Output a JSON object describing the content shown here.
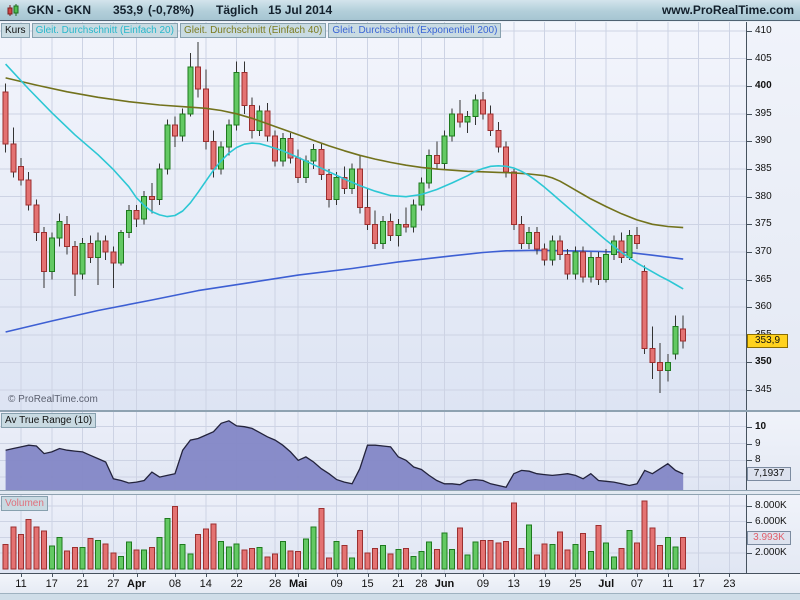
{
  "header": {
    "symbol_title": "GKN - GKN",
    "last_price": "353,9",
    "change": "(-0,78%)",
    "timeframe": "Täglich",
    "date": "15 Jul 2014",
    "website": "www.ProRealTime.com"
  },
  "legend": {
    "kurs": "Kurs",
    "ma20": "Gleit. Durchschnitt (Einfach 20)",
    "ma40": "Gleit. Durchschnitt (Einfach 40)",
    "ma200": "Gleit. Durchschnitt (Exponentiell 200)"
  },
  "watermark": "© ProRealTime.com",
  "panels": {
    "atr": {
      "label": "Av True Range (10)",
      "value_label": "7,1937"
    },
    "volume": {
      "label": "Volumen",
      "value_label": "3.993K"
    }
  },
  "colors": {
    "up": "#63c963",
    "up_border": "#1e7a1e",
    "down": "#e47272",
    "down_border": "#9c2f2f",
    "wick": "#333333",
    "ma20": "#2cc7d4",
    "ma40": "#72721c",
    "ema200": "#3d5fd3",
    "atr_fill": "#8387c6",
    "atr_line": "#23233c",
    "grid": "#cdd3e4",
    "axis_line": "#46525e",
    "price_flag_bg": "#ffd21e"
  },
  "chart_data": {
    "type": "candlestick",
    "title": "GKN - GKN Täglich",
    "price_axis": {
      "min": 345,
      "max": 410,
      "step": 5,
      "bold_ticks": [
        400,
        350
      ],
      "last_price": 353.9
    },
    "atr_axis": {
      "ticks": [
        {
          "v": 10,
          "b": 1
        },
        {
          "v": 9,
          "b": 0
        },
        {
          "v": 8,
          "b": 0
        }
      ],
      "grid": [
        10,
        9,
        8,
        7
      ],
      "last_value": 7.1937
    },
    "volume_axis": {
      "ticks": [
        {
          "v": 8,
          "label": "8.000K"
        },
        {
          "v": 6,
          "label": "6.000K"
        },
        {
          "v": 4,
          "label": "4.000K"
        },
        {
          "v": 2,
          "label": "2.000K"
        }
      ],
      "last_value": 3.993
    },
    "date_ticks": [
      {
        "i": 2,
        "label": "11",
        "b": 0
      },
      {
        "i": 6,
        "label": "17",
        "b": 0
      },
      {
        "i": 10,
        "label": "21",
        "b": 0
      },
      {
        "i": 14,
        "label": "27",
        "b": 0
      },
      {
        "i": 17,
        "label": "Apr",
        "b": 1
      },
      {
        "i": 22,
        "label": "08",
        "b": 0
      },
      {
        "i": 26,
        "label": "14",
        "b": 0
      },
      {
        "i": 30,
        "label": "22",
        "b": 0
      },
      {
        "i": 35,
        "label": "28",
        "b": 0
      },
      {
        "i": 38,
        "label": "Mai",
        "b": 1
      },
      {
        "i": 43,
        "label": "09",
        "b": 0
      },
      {
        "i": 47,
        "label": "15",
        "b": 0
      },
      {
        "i": 51,
        "label": "21",
        "b": 0
      },
      {
        "i": 54,
        "label": "28",
        "b": 0
      },
      {
        "i": 57,
        "label": "Jun",
        "b": 1
      },
      {
        "i": 62,
        "label": "09",
        "b": 0
      },
      {
        "i": 66,
        "label": "13",
        "b": 0
      },
      {
        "i": 70,
        "label": "19",
        "b": 0
      },
      {
        "i": 74,
        "label": "25",
        "b": 0
      },
      {
        "i": 78,
        "label": "Jul",
        "b": 1
      },
      {
        "i": 82,
        "label": "07",
        "b": 0
      },
      {
        "i": 86,
        "label": "11",
        "b": 0
      },
      {
        "i": 90,
        "label": "17",
        "b": 0
      },
      {
        "i": 94,
        "label": "23",
        "b": 0
      }
    ],
    "candles": [
      [
        399,
        400.5,
        388,
        389.5
      ],
      [
        389.5,
        392.5,
        383.5,
        384.5
      ],
      [
        385.5,
        387,
        382,
        383
      ],
      [
        383,
        384.5,
        377.5,
        378.5
      ],
      [
        378.5,
        379.5,
        372,
        373.5
      ],
      [
        373.5,
        374.5,
        363.5,
        366.5
      ],
      [
        366.5,
        373.5,
        365,
        372.5
      ],
      [
        372.5,
        377,
        371,
        375.5
      ],
      [
        375,
        376.5,
        369.5,
        371
      ],
      [
        371,
        372,
        362,
        366
      ],
      [
        366,
        372.5,
        365,
        371.5
      ],
      [
        371.5,
        373,
        368,
        369
      ],
      [
        369,
        373.5,
        364,
        372
      ],
      [
        372,
        373,
        368.5,
        370
      ],
      [
        370,
        371,
        363.5,
        368
      ],
      [
        368,
        374,
        367.5,
        373.5
      ],
      [
        373.5,
        378.5,
        372.5,
        377.5
      ],
      [
        377.5,
        378.5,
        374.5,
        376
      ],
      [
        376,
        381,
        375,
        380
      ],
      [
        380,
        382.5,
        377,
        379.5
      ],
      [
        379.5,
        386,
        378.5,
        385
      ],
      [
        385,
        394,
        384,
        393
      ],
      [
        393,
        394.5,
        389,
        391
      ],
      [
        391,
        396,
        390,
        395
      ],
      [
        395,
        406,
        394.5,
        403.5
      ],
      [
        403.5,
        408,
        398,
        399.5
      ],
      [
        399.5,
        403,
        388.5,
        390
      ],
      [
        390,
        392,
        383.5,
        385
      ],
      [
        385,
        390,
        384,
        389
      ],
      [
        389,
        394,
        387.5,
        393
      ],
      [
        393,
        404.5,
        392,
        402.5
      ],
      [
        402.5,
        404.5,
        395,
        396.5
      ],
      [
        396.5,
        398,
        390.5,
        392
      ],
      [
        392,
        396.5,
        391,
        395.5
      ],
      [
        395.5,
        397,
        390,
        391
      ],
      [
        391,
        392,
        385.5,
        386.5
      ],
      [
        386.5,
        391.5,
        385.5,
        390.5
      ],
      [
        390.5,
        391.5,
        386,
        387
      ],
      [
        387,
        388.5,
        382.5,
        383.5
      ],
      [
        383.5,
        387.5,
        382.5,
        386.5
      ],
      [
        386.5,
        389.5,
        385,
        388.5
      ],
      [
        388.5,
        389.5,
        383,
        384
      ],
      [
        384,
        385,
        378,
        379.5
      ],
      [
        379.5,
        384.5,
        378.5,
        383.5
      ],
      [
        383.5,
        385.5,
        380.5,
        381.5
      ],
      [
        381.5,
        386,
        380.5,
        385
      ],
      [
        385,
        387.5,
        377,
        378
      ],
      [
        378,
        381.5,
        374,
        375
      ],
      [
        375,
        377.5,
        370.5,
        371.5
      ],
      [
        371.5,
        376.5,
        370.5,
        375.5
      ],
      [
        375.5,
        377,
        372,
        373
      ],
      [
        373,
        376,
        371,
        375
      ],
      [
        375,
        378,
        373.5,
        374.5
      ],
      [
        374.5,
        379.5,
        373.5,
        378.5
      ],
      [
        378.5,
        383.5,
        377.5,
        382.5
      ],
      [
        382.5,
        388.5,
        381.5,
        387.5
      ],
      [
        387.5,
        390,
        385,
        386
      ],
      [
        386,
        392,
        385,
        391
      ],
      [
        391,
        396,
        390,
        395
      ],
      [
        395,
        397.5,
        392.5,
        393.5
      ],
      [
        393.5,
        395.5,
        391.5,
        394.5
      ],
      [
        394.5,
        398.5,
        393,
        397.5
      ],
      [
        397.5,
        399,
        394,
        395
      ],
      [
        395,
        396.5,
        391,
        392
      ],
      [
        392,
        393.5,
        388,
        389
      ],
      [
        389,
        390,
        383.5,
        384.5
      ],
      [
        384.5,
        385,
        374,
        375
      ],
      [
        375,
        376.5,
        370.5,
        371.5
      ],
      [
        371.5,
        374.5,
        370.5,
        373.5
      ],
      [
        373.5,
        374.5,
        369.5,
        370.5
      ],
      [
        370.5,
        371.5,
        367.5,
        368.5
      ],
      [
        368.5,
        373,
        367.5,
        372
      ],
      [
        372,
        373,
        368.5,
        369.5
      ],
      [
        369.5,
        370.5,
        365,
        366
      ],
      [
        366,
        371,
        365,
        370
      ],
      [
        370,
        371,
        364.5,
        365.5
      ],
      [
        365.5,
        370,
        364.5,
        369
      ],
      [
        369,
        370,
        364,
        365
      ],
      [
        365,
        370.5,
        364.5,
        369.5
      ],
      [
        369.5,
        373,
        368.5,
        372
      ],
      [
        372,
        373.5,
        368,
        369
      ],
      [
        369,
        374,
        368.5,
        373
      ],
      [
        373,
        374.5,
        370.5,
        371.5
      ],
      [
        366.5,
        367.5,
        351.5,
        352.5
      ],
      [
        352.5,
        356.5,
        347,
        350
      ],
      [
        350,
        353.5,
        344.5,
        348.5
      ],
      [
        348.5,
        351.5,
        346.5,
        350
      ],
      [
        351.5,
        358.5,
        350.5,
        356.5
      ],
      [
        356,
        358.5,
        352.5,
        353.9
      ]
    ],
    "volumes_k": [
      3.1,
      5.3,
      4.4,
      6.3,
      5.3,
      4.8,
      2.9,
      4.0,
      2.3,
      2.7,
      2.7,
      3.9,
      3.6,
      3.2,
      2.0,
      1.6,
      3.4,
      2.4,
      2.4,
      2.7,
      4.0,
      6.4,
      7.9,
      3.1,
      1.9,
      4.4,
      5.1,
      5.7,
      3.5,
      2.8,
      3.2,
      2.4,
      2.6,
      2.7,
      1.5,
      1.9,
      3.5,
      2.3,
      2.2,
      3.8,
      5.3,
      7.7,
      1.4,
      3.5,
      3.0,
      1.4,
      4.9,
      2.0,
      2.6,
      3.0,
      1.9,
      2.5,
      2.6,
      1.6,
      2.2,
      3.4,
      2.5,
      4.6,
      2.5,
      5.2,
      1.8,
      3.4,
      3.6,
      3.6,
      3.3,
      3.5,
      8.4,
      2.6,
      5.6,
      1.8,
      3.2,
      3.1,
      4.7,
      2.4,
      3.1,
      4.5,
      2.2,
      5.5,
      3.3,
      1.5,
      2.6,
      4.9,
      3.3,
      8.6,
      5.2,
      3.0,
      4.0,
      2.8,
      3.993
    ],
    "atr": [
      8.6,
      8.7,
      8.8,
      8.9,
      8.85,
      8.4,
      8.5,
      8.7,
      8.6,
      8.55,
      8.5,
      8.3,
      8.1,
      7.9,
      6.9,
      6.8,
      6.65,
      6.7,
      6.8,
      7.3,
      7.0,
      7.1,
      7.2,
      8.6,
      9.2,
      9.3,
      9.5,
      9.7,
      10.2,
      10.35,
      10.05,
      10.0,
      9.9,
      9.65,
      9.4,
      9.2,
      8.9,
      8.5,
      8.0,
      8.2,
      7.9,
      7.5,
      7.2,
      6.85,
      6.7,
      6.6,
      7.5,
      8.9,
      8.9,
      8.85,
      8.8,
      8.2,
      8.0,
      7.6,
      7.45,
      7.1,
      6.8,
      6.6,
      6.6,
      6.55,
      6.8,
      6.85,
      6.8,
      6.6,
      6.5,
      6.4,
      7.2,
      7.4,
      7.35,
      7.2,
      7.15,
      7.1,
      7.15,
      7.2,
      7.1,
      6.9,
      7.2,
      6.8,
      6.75,
      6.7,
      6.6,
      6.5,
      6.6,
      7.4,
      7.2,
      7.5,
      7.8,
      7.4,
      7.19
    ],
    "ma20": [
      [
        0,
        404
      ],
      [
        3,
        399.5
      ],
      [
        6,
        395.2
      ],
      [
        9,
        391.2
      ],
      [
        12,
        387.6
      ],
      [
        14,
        384.9
      ],
      [
        16,
        381.8
      ],
      [
        17,
        379.8
      ],
      [
        18,
        378.4
      ],
      [
        19,
        377.3
      ],
      [
        20,
        376.7
      ],
      [
        21,
        376.4
      ],
      [
        22,
        376.6
      ],
      [
        23,
        377.4
      ],
      [
        24,
        378.9
      ],
      [
        25,
        380.8
      ],
      [
        26,
        382.8
      ],
      [
        27,
        384.8
      ],
      [
        28,
        386.5
      ],
      [
        29,
        387.9
      ],
      [
        30,
        388.9
      ],
      [
        31,
        389.5
      ],
      [
        32,
        389.7
      ],
      [
        33,
        389.6
      ],
      [
        34,
        389.2
      ],
      [
        36,
        388.3
      ],
      [
        38,
        387.1
      ],
      [
        40,
        385.8
      ],
      [
        42,
        384.5
      ],
      [
        44,
        383.2
      ],
      [
        46,
        382
      ],
      [
        48,
        381
      ],
      [
        50,
        380.2
      ],
      [
        52,
        380
      ],
      [
        54,
        380.4
      ],
      [
        56,
        381.3
      ],
      [
        58,
        382.5
      ],
      [
        60,
        383.8
      ],
      [
        61,
        384.6
      ],
      [
        62,
        385.1
      ],
      [
        63,
        385.5
      ],
      [
        64,
        385.6
      ],
      [
        65,
        385.5
      ],
      [
        66,
        385.2
      ],
      [
        67,
        384.6
      ],
      [
        68,
        383.8
      ],
      [
        69,
        382.8
      ],
      [
        70,
        381.7
      ],
      [
        71,
        380.5
      ],
      [
        72,
        379.3
      ],
      [
        74,
        376.9
      ],
      [
        76,
        374.5
      ],
      [
        78,
        372.1
      ],
      [
        80,
        369.9
      ],
      [
        82,
        368
      ],
      [
        83,
        367.2
      ],
      [
        84,
        366.4
      ],
      [
        85,
        365.6
      ],
      [
        86,
        364.9
      ],
      [
        87,
        364.1
      ],
      [
        88,
        363.3
      ]
    ],
    "ma40": [
      [
        0,
        401.5
      ],
      [
        4,
        400.2
      ],
      [
        8,
        399
      ],
      [
        12,
        398
      ],
      [
        16,
        397.2
      ],
      [
        20,
        396.6
      ],
      [
        24,
        396.2
      ],
      [
        26,
        396
      ],
      [
        28,
        395.6
      ],
      [
        30,
        395
      ],
      [
        32,
        394.2
      ],
      [
        34,
        393.2
      ],
      [
        36,
        392.2
      ],
      [
        38,
        391.2
      ],
      [
        40,
        390.2
      ],
      [
        42,
        389.2
      ],
      [
        44,
        388.3
      ],
      [
        46,
        387.5
      ],
      [
        48,
        386.8
      ],
      [
        50,
        386.2
      ],
      [
        52,
        385.7
      ],
      [
        54,
        385.3
      ],
      [
        56,
        385
      ],
      [
        58,
        384.8
      ],
      [
        60,
        384.6
      ],
      [
        62,
        384.5
      ],
      [
        64,
        384.4
      ],
      [
        66,
        384.3
      ],
      [
        68,
        384.1
      ],
      [
        70,
        383.8
      ],
      [
        71,
        383.4
      ],
      [
        72,
        382.8
      ],
      [
        73,
        382
      ],
      [
        74,
        381.2
      ],
      [
        75,
        380.4
      ],
      [
        76,
        379.6
      ],
      [
        78,
        378.2
      ],
      [
        80,
        376.9
      ],
      [
        82,
        375.8
      ],
      [
        84,
        375
      ],
      [
        86,
        374.6
      ],
      [
        88,
        374.4
      ]
    ],
    "ema200": [
      [
        0,
        355.5
      ],
      [
        6,
        357.5
      ],
      [
        12,
        359.4
      ],
      [
        19,
        361.3
      ],
      [
        25,
        363
      ],
      [
        32,
        364.5
      ],
      [
        38,
        365.8
      ],
      [
        45,
        367
      ],
      [
        51,
        368.2
      ],
      [
        58,
        369.3
      ],
      [
        62,
        369.9
      ],
      [
        65,
        370.2
      ],
      [
        69,
        370.3
      ],
      [
        73,
        370.2
      ],
      [
        77,
        370.1
      ],
      [
        81,
        369.9
      ],
      [
        84,
        369.4
      ],
      [
        88,
        368.7
      ]
    ]
  }
}
